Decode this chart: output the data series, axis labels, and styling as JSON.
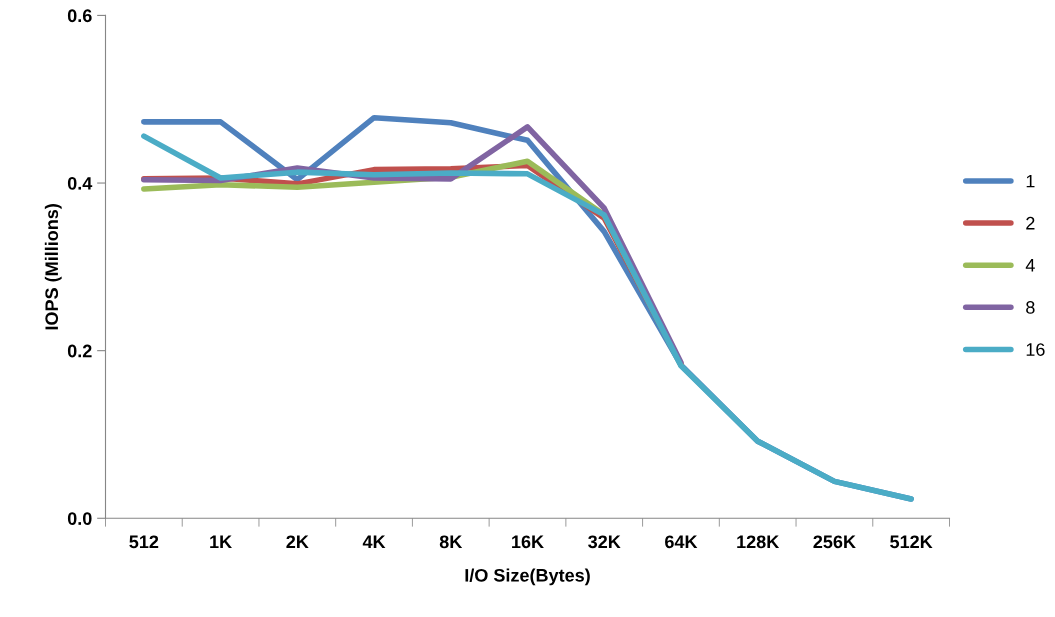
{
  "chart_data": {
    "type": "line",
    "xlabel": "I/O Size(Bytes)",
    "ylabel": "IOPS (Millions)",
    "categories": [
      "512",
      "1K",
      "2K",
      "4K",
      "8K",
      "16K",
      "32K",
      "64K",
      "128K",
      "256K",
      "512K"
    ],
    "ylim": [
      0,
      0.6
    ],
    "yticks": [
      {
        "value": 0,
        "label": "0.0"
      },
      {
        "value": 0.2,
        "label": "0.2"
      },
      {
        "value": 0.4,
        "label": "0.4"
      },
      {
        "value": 0.6,
        "label": "0.6"
      }
    ],
    "grid": false,
    "legend": "right",
    "marker": "none",
    "line_style": "solid",
    "series": [
      {
        "name": "1",
        "color": "#4f81bd",
        "values": [
          0.473,
          0.473,
          0.404,
          0.478,
          0.472,
          0.451,
          0.342,
          0.183,
          0.092,
          0.044,
          0.023
        ]
      },
      {
        "name": "2",
        "color": "#c0504d",
        "values": [
          0.405,
          0.406,
          0.399,
          0.416,
          0.417,
          0.421,
          0.358,
          0.184,
          null,
          null,
          null
        ]
      },
      {
        "name": "4",
        "color": "#9bbb59",
        "values": [
          0.393,
          0.398,
          0.395,
          0.401,
          0.407,
          0.426,
          0.362,
          0.183,
          null,
          null,
          null
        ]
      },
      {
        "name": "8",
        "color": "#8064a2",
        "values": [
          0.404,
          0.403,
          0.418,
          0.406,
          0.405,
          0.467,
          0.37,
          0.186,
          null,
          null,
          null
        ]
      },
      {
        "name": "16",
        "color": "#4bacc6",
        "values": [
          0.456,
          0.406,
          0.413,
          0.41,
          0.412,
          0.411,
          0.362,
          0.182,
          0.092,
          0.044,
          0.023
        ]
      }
    ]
  }
}
